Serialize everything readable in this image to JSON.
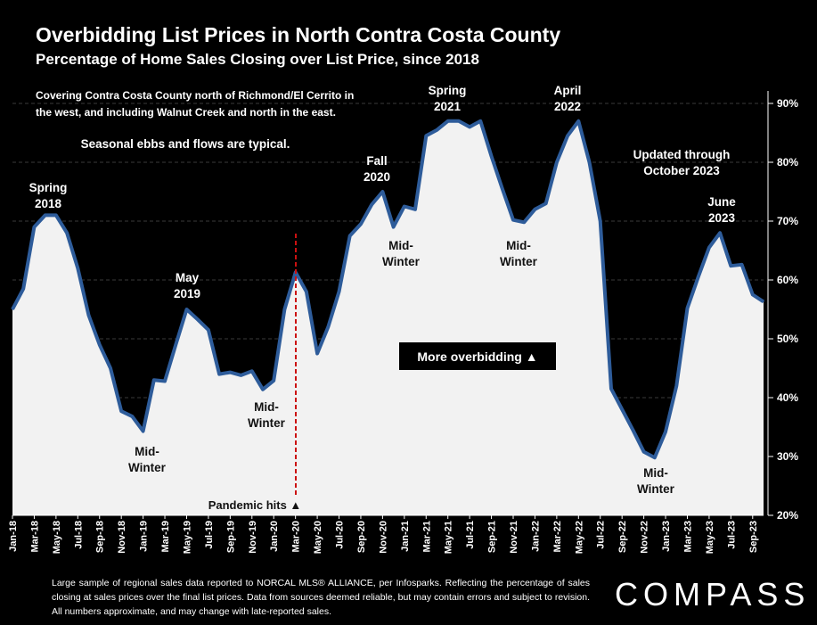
{
  "header": {
    "title": "Overbidding List Prices in North Contra Costa County",
    "subtitle": "Percentage of Home Sales Closing over List Price, since 2018"
  },
  "chart_data": {
    "type": "area",
    "title": "Overbidding List Prices in North Contra Costa County",
    "subtitle": "Percentage of Home Sales Closing over List Price, since 2018",
    "ylim": [
      20,
      90
    ],
    "y_ticks": [
      20,
      30,
      40,
      50,
      60,
      70,
      80,
      90
    ],
    "y_tick_labels": [
      "20%",
      "30%",
      "40%",
      "50%",
      "60%",
      "70%",
      "80%",
      "90%"
    ],
    "x_tick_labels": [
      "Jan-18",
      "Mar-18",
      "May-18",
      "Jul-18",
      "Sep-18",
      "Nov-18",
      "Jan-19",
      "Mar-19",
      "May-19",
      "Jul-19",
      "Sep-19",
      "Nov-19",
      "Jan-20",
      "Mar-20",
      "May-20",
      "Jul-20",
      "Sep-20",
      "Nov-20",
      "Jan-21",
      "Mar-21",
      "May-21",
      "Jul-21",
      "Sep-21",
      "Nov-21",
      "Jan-22",
      "Mar-22",
      "May-22",
      "Jul-22",
      "Sep-22",
      "Nov-22",
      "Jan-23",
      "Mar-23",
      "May-23",
      "Jul-23",
      "Sep-23"
    ],
    "grid": true,
    "series": [
      {
        "color": "#2E5C9A",
        "fill": "#F2F2F2",
        "values": [
          55,
          58.5,
          69,
          71,
          71,
          68,
          62,
          54,
          49,
          45,
          37.7,
          36.8,
          34.3,
          43,
          42.8,
          49,
          55,
          53.3,
          51.5,
          44,
          44.3,
          43.8,
          44.5,
          41.4,
          42.9,
          55,
          61.3,
          58,
          47.5,
          52,
          58,
          67.5,
          69.5,
          72.8,
          75,
          69,
          72.5,
          72,
          84.5,
          85.5,
          87,
          87,
          86,
          87,
          81,
          75.5,
          70.2,
          69.8,
          72,
          73,
          80,
          84.5,
          87,
          80,
          70,
          41.5,
          38,
          34.5,
          30.8,
          29.8,
          34.2,
          42,
          55.2,
          60.5,
          65.5,
          68,
          62.4,
          62.6,
          57.5,
          56.3
        ]
      }
    ],
    "annotations": {
      "note_top": "Covering Contra Costa County north of Richmond/El Cerrito in the west, and including Walnut Creek and north in the east.",
      "note_seasonal": "Seasonal ebbs and flows are typical.",
      "spring_2018": [
        "Spring",
        "2018"
      ],
      "may_2019": [
        "May",
        "2019"
      ],
      "fall_2020": [
        "Fall",
        "2020"
      ],
      "spring_2021": [
        "Spring",
        "2021"
      ],
      "april_2022": [
        "April",
        "2022"
      ],
      "june_2023": [
        "June",
        "2023"
      ],
      "updated": [
        "Updated through",
        "October 2023"
      ],
      "midwinter_1": [
        "Mid-",
        "Winter"
      ],
      "midwinter_2": [
        "Mid-",
        "Winter"
      ],
      "midwinter_3": [
        "Mid-",
        "Winter"
      ],
      "midwinter_4": [
        "Mid-",
        "Winter"
      ],
      "midwinter_5": [
        "Mid-",
        "Winter"
      ],
      "pandemic": "Pandemic hits ▲",
      "more_overbidding": "More overbidding ▲"
    }
  },
  "footer": {
    "note": "Large sample of regional sales data reported to NORCAL MLS® ALLIANCE, per Infosparks. Reflecting the percentage of sales closing at sales prices over the final list prices. Data from sources deemed reliable, but may contain errors and subject to revision. All numbers approximate, and may change with late-reported sales.",
    "logo": "COMPASS"
  }
}
